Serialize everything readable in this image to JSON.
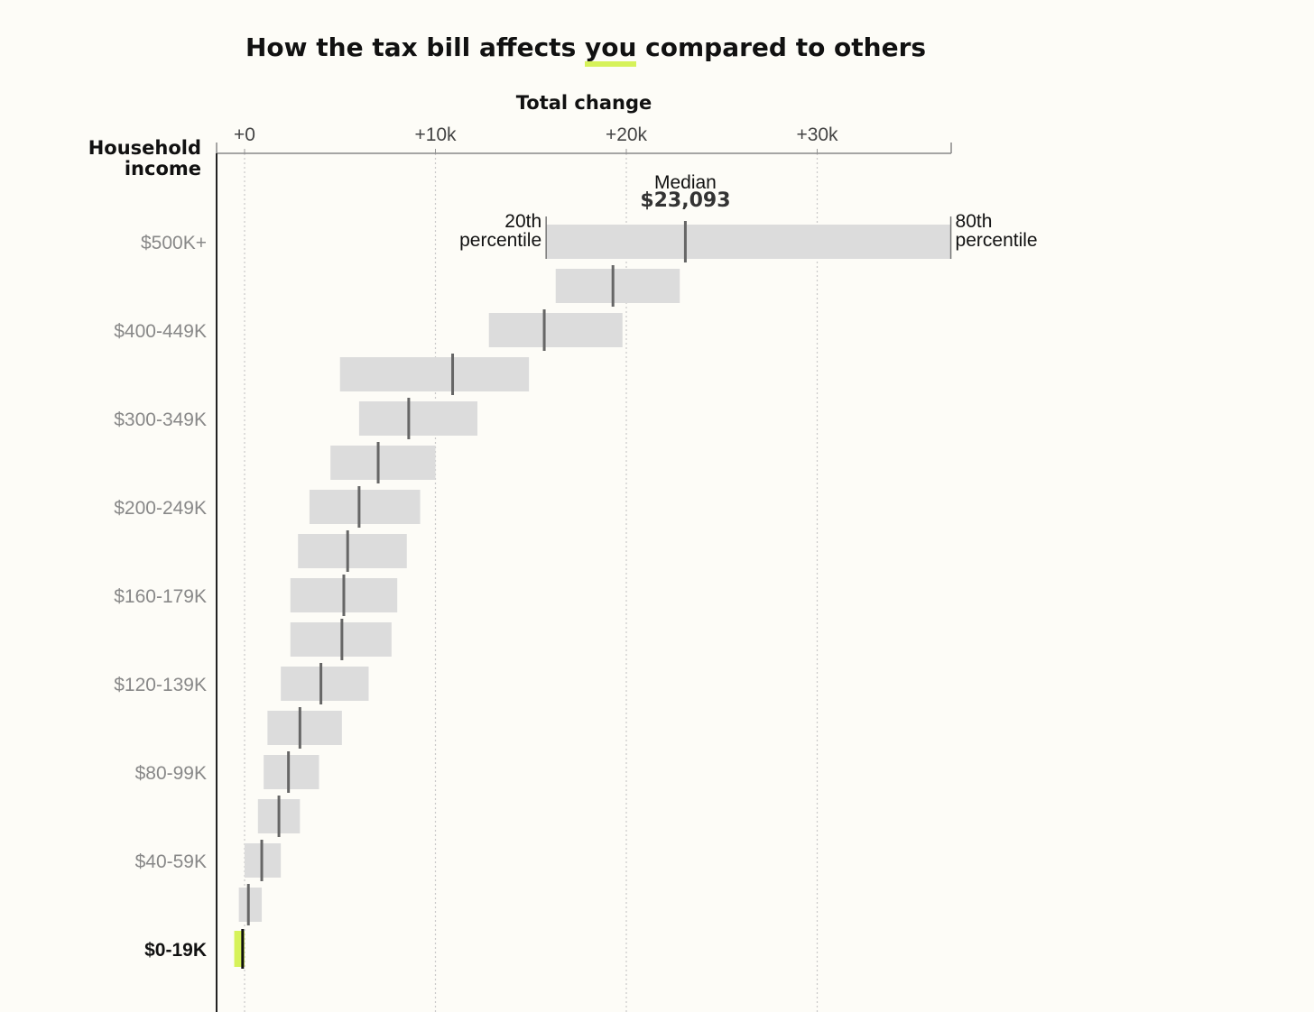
{
  "title": {
    "before": "How the tax bill affects ",
    "highlight": "you",
    "after": " compared to others"
  },
  "colors": {
    "background": "#fdfcf7",
    "range_bar": "#dcdcdc",
    "median_line": "#666666",
    "highlight": "#d6f25a",
    "highlight_median": "#111111"
  },
  "chart_data": {
    "type": "range-bar",
    "xlabel": "Total change",
    "ylabel_line1": "Household",
    "ylabel_line2": "income",
    "xlim": [
      -1500,
      37000
    ],
    "xticks": [
      {
        "value": 0,
        "label": "+0"
      },
      {
        "value": 10000,
        "label": "+10k"
      },
      {
        "value": 20000,
        "label": "+20k"
      },
      {
        "value": 30000,
        "label": "+30k"
      }
    ],
    "grid": true,
    "rows": [
      {
        "label": "$500K+",
        "p20": 15800,
        "median": 23093,
        "p80": 37000
      },
      {
        "label": "",
        "p20": 16300,
        "median": 19300,
        "p80": 22800
      },
      {
        "label": "$400-449K",
        "p20": 12800,
        "median": 15700,
        "p80": 19800
      },
      {
        "label": "",
        "p20": 5000,
        "median": 10900,
        "p80": 14900
      },
      {
        "label": "$300-349K",
        "p20": 6000,
        "median": 8600,
        "p80": 12200
      },
      {
        "label": "",
        "p20": 4500,
        "median": 7000,
        "p80": 10000
      },
      {
        "label": "$200-249K",
        "p20": 3400,
        "median": 6000,
        "p80": 9200
      },
      {
        "label": "",
        "p20": 2800,
        "median": 5400,
        "p80": 8500
      },
      {
        "label": "$160-179K",
        "p20": 2400,
        "median": 5200,
        "p80": 8000
      },
      {
        "label": "",
        "p20": 2400,
        "median": 5100,
        "p80": 7700
      },
      {
        "label": "$120-139K",
        "p20": 1900,
        "median": 4000,
        "p80": 6500
      },
      {
        "label": "",
        "p20": 1200,
        "median": 2900,
        "p80": 5100
      },
      {
        "label": "$80-99K",
        "p20": 1000,
        "median": 2300,
        "p80": 3900
      },
      {
        "label": "",
        "p20": 700,
        "median": 1800,
        "p80": 2900
      },
      {
        "label": "$40-59K",
        "p20": 0,
        "median": 900,
        "p80": 1900
      },
      {
        "label": "",
        "p20": -300,
        "median": 200,
        "p80": 900
      },
      {
        "label": "$0-19K",
        "p20": -400,
        "median": -150,
        "p80": 0,
        "highlight": true
      }
    ],
    "annotations": {
      "median_label": "Median",
      "median_value": "$23,093",
      "p20_line1": "20th",
      "p20_line2": "percentile",
      "p80_line1": "80th",
      "p80_line2": "percentile"
    }
  }
}
